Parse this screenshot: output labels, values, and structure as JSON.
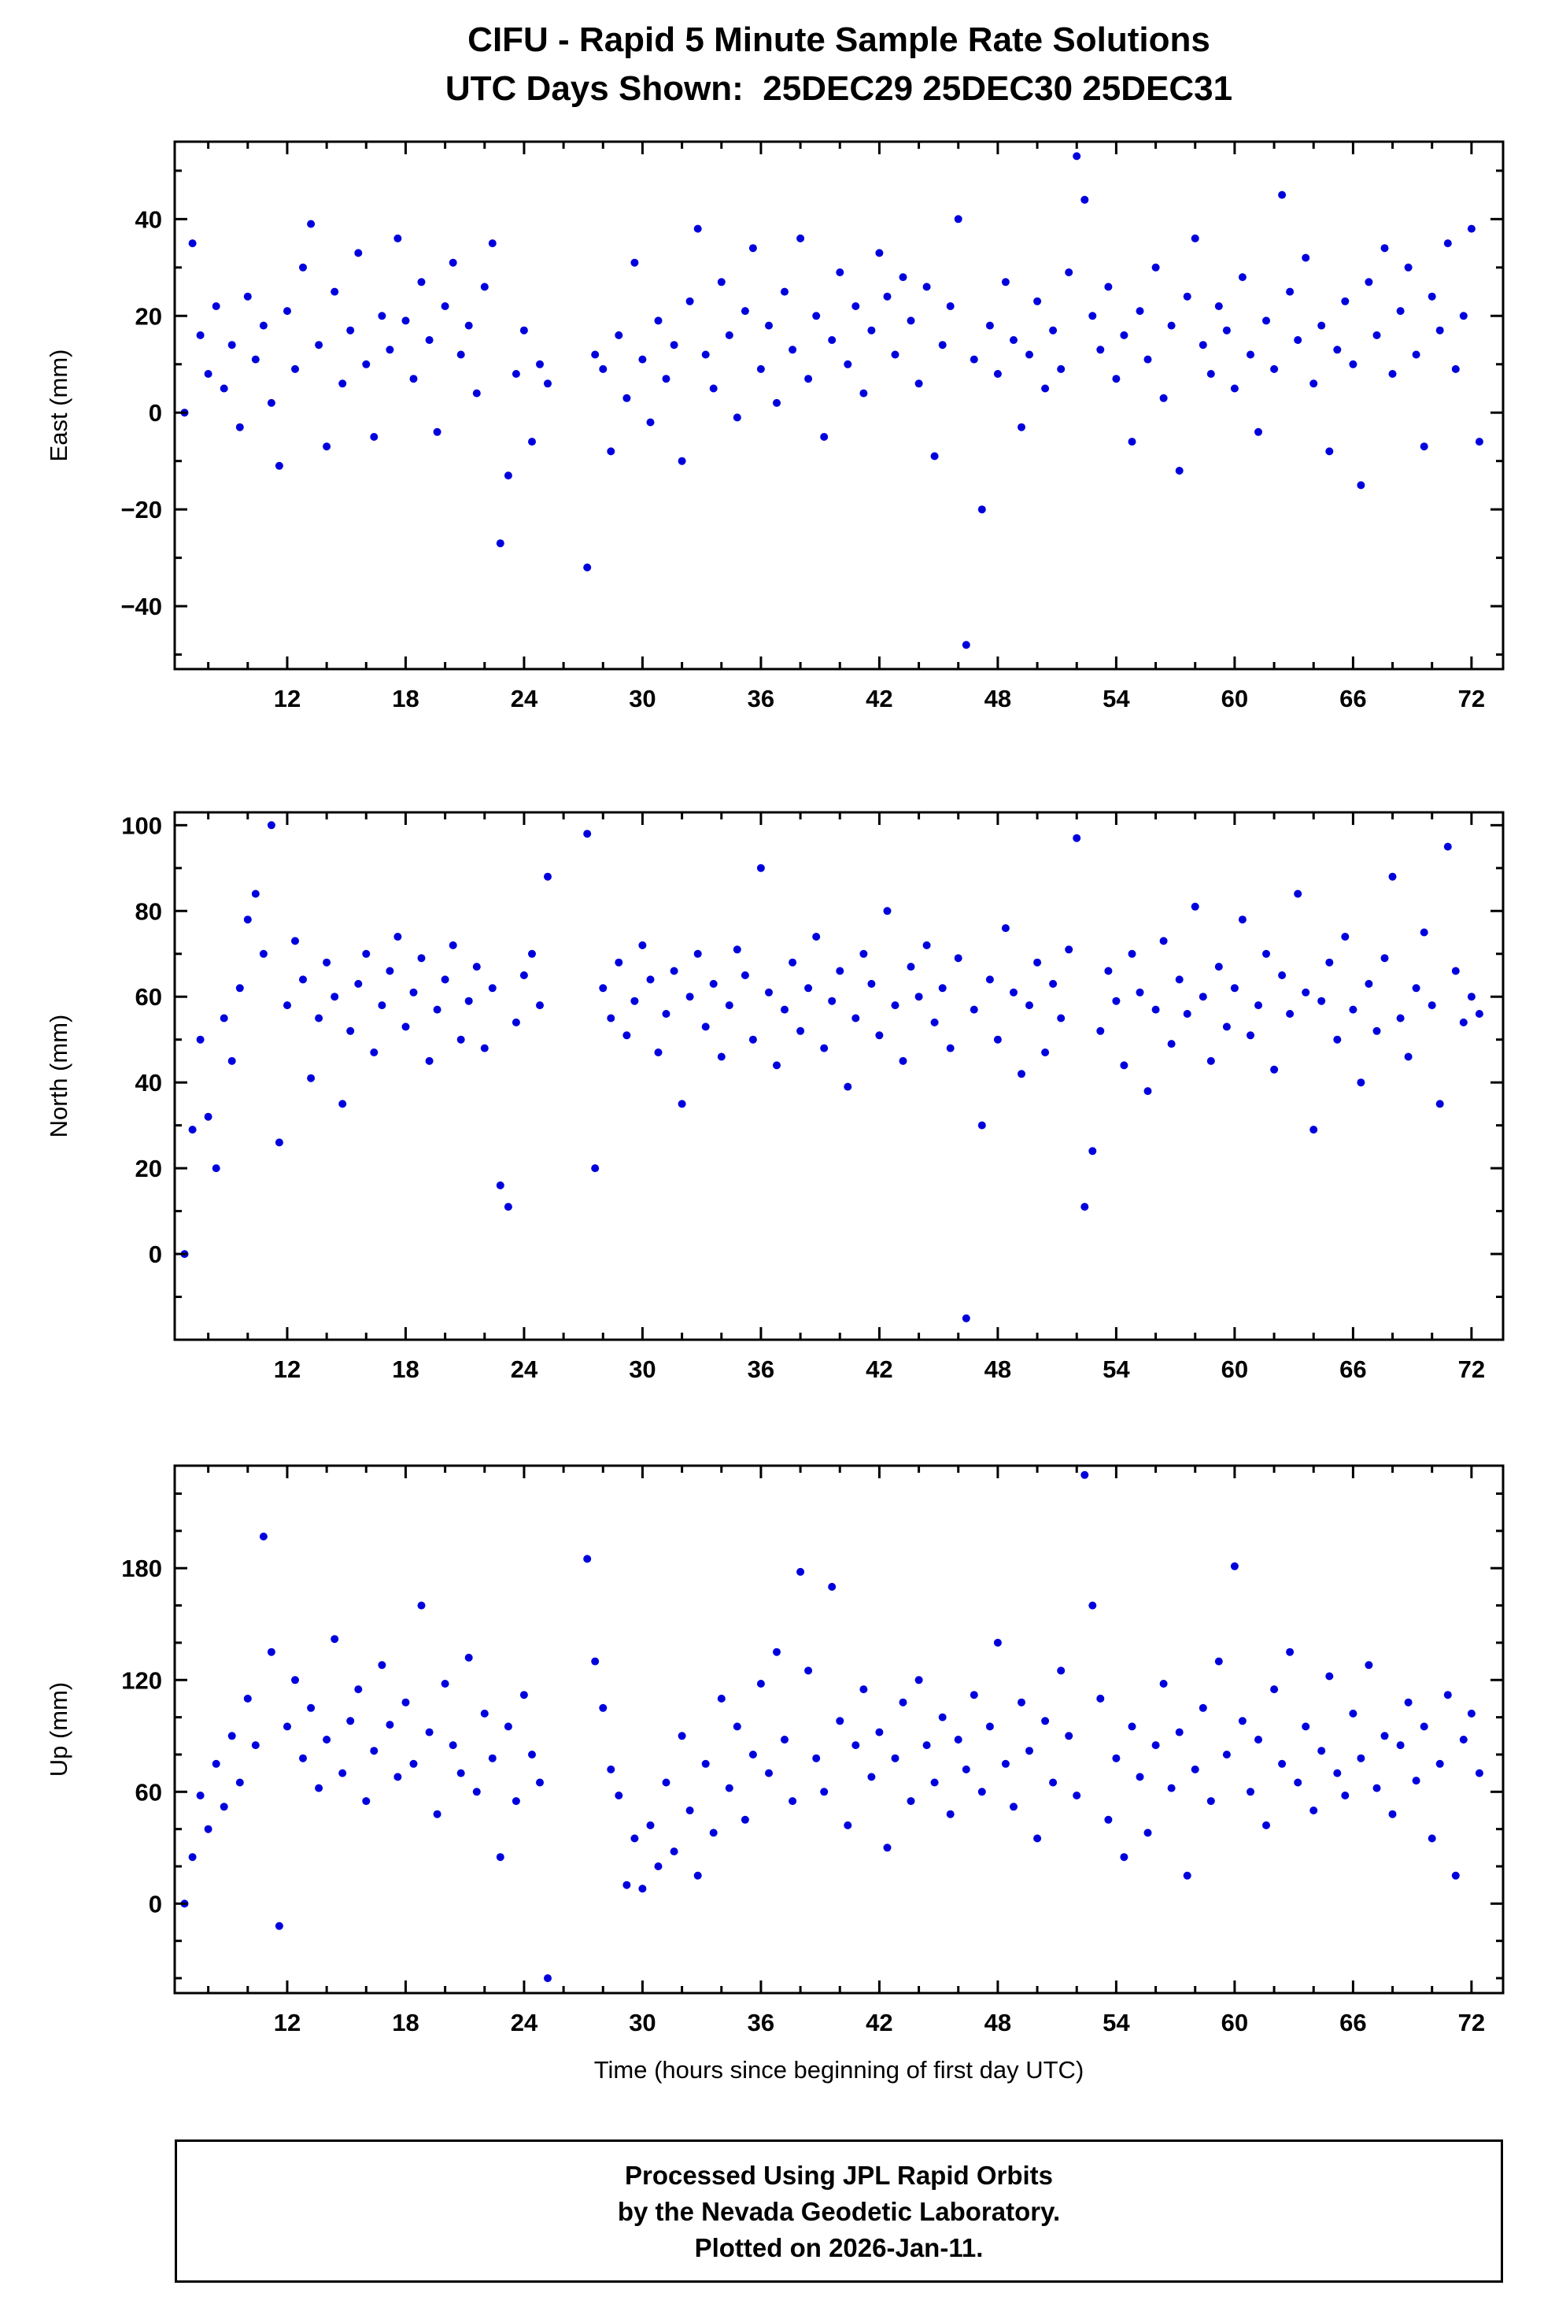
{
  "chart_data": {
    "type": "scatter",
    "title": "CIFU - Rapid 5 Minute Sample Rate Solutions",
    "subtitle": "UTC Days Shown:  25DEC29 25DEC30 25DEC31",
    "xlabel": "Time (hours since beginning of first day UTC)",
    "xlim": [
      6.3,
      73.6
    ],
    "xticks": [
      12,
      18,
      24,
      30,
      36,
      42,
      48,
      54,
      60,
      66,
      72
    ],
    "x_minor_step": 2,
    "marker_color": "#0000dd",
    "marker_radius": 5,
    "grid": false,
    "legend": "none",
    "x": [
      6.8,
      7.2,
      7.6,
      8,
      8.4,
      8.8,
      9.2,
      9.6,
      10,
      10.4,
      10.8,
      11.2,
      11.6,
      12,
      12.4,
      12.8,
      13.2,
      13.6,
      14,
      14.4,
      14.8,
      15.2,
      15.6,
      16,
      16.4,
      16.8,
      17.2,
      17.6,
      18,
      18.4,
      18.8,
      19.2,
      19.6,
      20,
      20.4,
      20.8,
      21.2,
      21.6,
      22,
      22.4,
      22.8,
      23.2,
      23.6,
      24,
      24.4,
      24.8,
      25.2,
      27.2,
      27.6,
      28,
      28.4,
      28.8,
      29.2,
      29.6,
      30,
      30.4,
      30.8,
      31.2,
      31.6,
      32,
      32.4,
      32.8,
      33.2,
      33.6,
      34,
      34.4,
      34.8,
      35.2,
      35.6,
      36,
      36.4,
      36.8,
      37.2,
      37.6,
      38,
      38.4,
      38.8,
      39.2,
      39.6,
      40,
      40.4,
      40.8,
      41.2,
      41.6,
      42,
      42.4,
      42.8,
      43.2,
      43.6,
      44,
      44.4,
      44.8,
      45.2,
      45.6,
      46,
      46.4,
      46.8,
      47.2,
      47.6,
      48,
      48.4,
      48.8,
      49.2,
      49.6,
      50,
      50.4,
      50.8,
      51.2,
      51.6,
      52,
      52.4,
      52.8,
      53.2,
      53.6,
      54,
      54.4,
      54.8,
      55.2,
      55.6,
      56,
      56.4,
      56.8,
      57.2,
      57.6,
      58,
      58.4,
      58.8,
      59.2,
      59.6,
      60,
      60.4,
      60.8,
      61.2,
      61.6,
      62,
      62.4,
      62.8,
      63.2,
      63.6,
      64,
      64.4,
      64.8,
      65.2,
      65.6,
      66,
      66.4,
      66.8,
      67.2,
      67.6,
      68,
      68.4,
      68.8,
      69.2,
      69.6,
      70,
      70.4,
      70.8,
      71.2,
      71.6,
      72,
      72.4
    ],
    "panels": [
      {
        "name": "east",
        "ylabel": "East (mm)",
        "ylim": [
          -53,
          56
        ],
        "yticks": [
          -40,
          -20,
          0,
          20,
          40
        ],
        "y_minor_step": 10,
        "y": [
          0,
          35,
          16,
          8,
          22,
          5,
          14,
          -3,
          24,
          11,
          18,
          2,
          -11,
          21,
          9,
          30,
          39,
          14,
          -7,
          25,
          6,
          17,
          33,
          10,
          -5,
          20,
          13,
          36,
          19,
          7,
          27,
          15,
          -4,
          22,
          31,
          12,
          18,
          4,
          26,
          35,
          -27,
          -13,
          8,
          17,
          -6,
          10,
          6,
          -32,
          12,
          9,
          -8,
          16,
          3,
          31,
          11,
          -2,
          19,
          7,
          14,
          -10,
          23,
          38,
          12,
          5,
          27,
          16,
          -1,
          21,
          34,
          9,
          18,
          2,
          25,
          13,
          36,
          7,
          20,
          -5,
          15,
          29,
          10,
          22,
          4,
          17,
          33,
          24,
          12,
          28,
          19,
          6,
          26,
          -9,
          14,
          22,
          40,
          -48,
          11,
          -20,
          18,
          8,
          27,
          15,
          -3,
          12,
          23,
          5,
          17,
          9,
          29,
          53,
          44,
          20,
          13,
          26,
          7,
          16,
          -6,
          21,
          11,
          30,
          3,
          18,
          -12,
          24,
          36,
          14,
          8,
          22,
          17,
          5,
          28,
          12,
          -4,
          19,
          9,
          45,
          25,
          15,
          32,
          6,
          18,
          -8,
          13,
          23,
          10,
          -15,
          27,
          16,
          34,
          8,
          21,
          30,
          12,
          -7,
          24,
          17,
          35,
          9,
          20,
          38,
          -6
        ]
      },
      {
        "name": "north",
        "ylabel": "North (mm)",
        "ylim": [
          -20,
          103
        ],
        "yticks": [
          0,
          20,
          40,
          60,
          80,
          100
        ],
        "y_minor_step": 10,
        "y": [
          0,
          29,
          50,
          32,
          20,
          55,
          45,
          62,
          78,
          84,
          70,
          100,
          26,
          58,
          73,
          64,
          41,
          55,
          68,
          60,
          35,
          52,
          63,
          70,
          47,
          58,
          66,
          74,
          53,
          61,
          69,
          45,
          57,
          64,
          72,
          50,
          59,
          67,
          48,
          62,
          16,
          11,
          54,
          65,
          70,
          58,
          88,
          98,
          20,
          62,
          55,
          68,
          51,
          59,
          72,
          64,
          47,
          56,
          66,
          35,
          60,
          70,
          53,
          63,
          46,
          58,
          71,
          65,
          50,
          90,
          61,
          44,
          57,
          68,
          52,
          62,
          74,
          48,
          59,
          66,
          39,
          55,
          70,
          63,
          51,
          80,
          58,
          45,
          67,
          60,
          72,
          54,
          62,
          48,
          69,
          -15,
          57,
          30,
          64,
          50,
          76,
          61,
          42,
          58,
          68,
          47,
          63,
          55,
          71,
          97,
          11,
          24,
          52,
          66,
          59,
          44,
          70,
          61,
          38,
          57,
          73,
          49,
          64,
          56,
          81,
          60,
          45,
          67,
          53,
          62,
          78,
          51,
          58,
          70,
          43,
          65,
          56,
          84,
          61,
          29,
          59,
          68,
          50,
          74,
          57,
          40,
          63,
          52,
          69,
          88,
          55,
          46,
          62,
          75,
          58,
          35,
          95,
          66,
          54,
          60,
          56
        ]
      },
      {
        "name": "up",
        "ylabel": "Up (mm)",
        "ylim": [
          -48,
          235
        ],
        "yticks": [
          0,
          60,
          120,
          180
        ],
        "y_minor_step": 20,
        "y": [
          0,
          25,
          58,
          40,
          75,
          52,
          90,
          65,
          110,
          85,
          197,
          135,
          -12,
          95,
          120,
          78,
          105,
          62,
          88,
          142,
          70,
          98,
          115,
          55,
          82,
          128,
          96,
          68,
          108,
          75,
          160,
          92,
          48,
          118,
          85,
          70,
          132,
          60,
          102,
          78,
          25,
          95,
          55,
          112,
          80,
          65,
          -40,
          185,
          130,
          105,
          72,
          58,
          10,
          35,
          8,
          42,
          20,
          65,
          28,
          90,
          50,
          15,
          75,
          38,
          110,
          62,
          95,
          45,
          80,
          118,
          70,
          135,
          88,
          55,
          178,
          125,
          78,
          60,
          170,
          98,
          42,
          85,
          115,
          68,
          92,
          30,
          78,
          108,
          55,
          120,
          85,
          65,
          100,
          48,
          88,
          72,
          112,
          60,
          95,
          140,
          75,
          52,
          108,
          82,
          35,
          98,
          65,
          125,
          90,
          58,
          230,
          160,
          110,
          45,
          78,
          25,
          95,
          68,
          38,
          85,
          118,
          62,
          92,
          15,
          72,
          105,
          55,
          130,
          80,
          181,
          98,
          60,
          88,
          42,
          115,
          75,
          135,
          65,
          95,
          50,
          82,
          122,
          70,
          58,
          102,
          78,
          128,
          62,
          90,
          48,
          85,
          108,
          66,
          95,
          35,
          75,
          112,
          15,
          88,
          102,
          70
        ]
      }
    ]
  },
  "footer": {
    "line1": "Processed Using JPL Rapid Orbits",
    "line2": "by the Nevada Geodetic Laboratory.",
    "line3": "Plotted on 2026-Jan-11."
  }
}
